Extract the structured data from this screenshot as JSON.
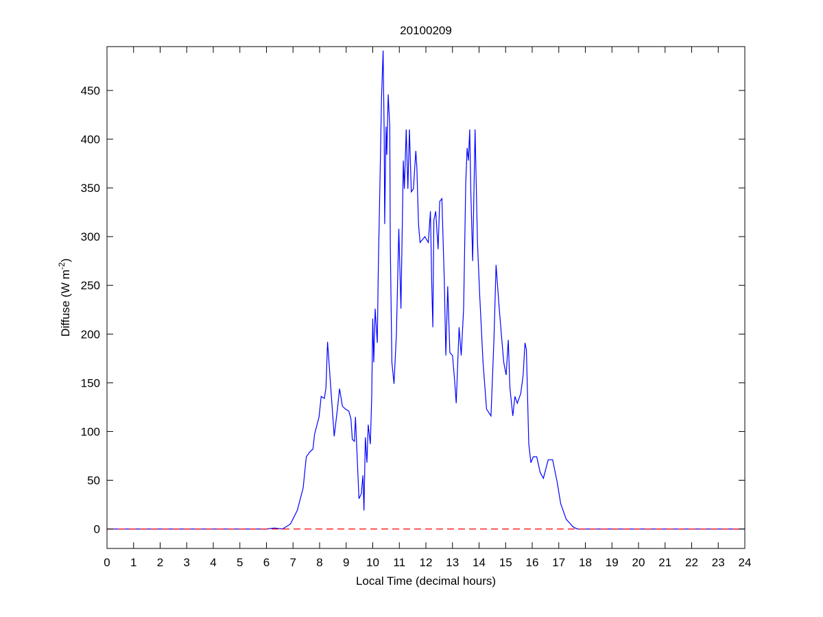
{
  "chart_data": {
    "type": "line",
    "title": "20100209",
    "xlabel": "Local Time (decimal hours)",
    "ylabel": "Diffuse (W m",
    "ylabel_superscript": "-2",
    "ylabel_suffix": ")",
    "xlim": [
      0,
      24
    ],
    "ylim": [
      -20,
      495
    ],
    "xticks": [
      0,
      1,
      2,
      3,
      4,
      5,
      6,
      7,
      8,
      9,
      10,
      11,
      12,
      13,
      14,
      15,
      16,
      17,
      18,
      19,
      20,
      21,
      22,
      23,
      24
    ],
    "yticks": [
      0,
      50,
      100,
      150,
      200,
      250,
      300,
      350,
      400,
      450
    ],
    "grid": false,
    "series": [
      {
        "color": "#0000ff",
        "style": "solid",
        "x": [
          0,
          6.0,
          6.3,
          6.6,
          6.9,
          7.16,
          7.38,
          7.5,
          7.63,
          7.75,
          7.81,
          7.98,
          8.06,
          8.18,
          8.24,
          8.3,
          8.41,
          8.55,
          8.67,
          8.75,
          8.86,
          8.97,
          9.1,
          9.18,
          9.23,
          9.31,
          9.35,
          9.44,
          9.48,
          9.57,
          9.63,
          9.67,
          9.72,
          9.78,
          9.83,
          9.91,
          9.96,
          10.0,
          10.04,
          10.09,
          10.17,
          10.21,
          10.27,
          10.33,
          10.39,
          10.43,
          10.45,
          10.5,
          10.53,
          10.58,
          10.64,
          10.66,
          10.72,
          10.8,
          10.89,
          10.98,
          11.06,
          11.15,
          11.19,
          11.26,
          11.32,
          11.38,
          11.45,
          11.53,
          11.62,
          11.66,
          11.72,
          11.78,
          11.96,
          12.09,
          12.17,
          12.22,
          12.26,
          12.3,
          12.37,
          12.46,
          12.52,
          12.6,
          12.69,
          12.75,
          12.82,
          12.9,
          13.0,
          13.08,
          13.14,
          13.25,
          13.33,
          13.42,
          13.5,
          13.55,
          13.6,
          13.65,
          13.69,
          13.76,
          13.85,
          13.94,
          14.02,
          14.15,
          14.28,
          14.45,
          14.56,
          14.64,
          14.75,
          14.84,
          14.93,
          15.02,
          15.1,
          15.16,
          15.27,
          15.35,
          15.44,
          15.57,
          15.66,
          15.73,
          15.78,
          15.87,
          15.95,
          16.04,
          16.17,
          16.3,
          16.42,
          16.6,
          16.77,
          16.94,
          17.07,
          17.28,
          17.54,
          17.7,
          24
        ],
        "y": [
          0,
          0,
          1,
          0,
          5,
          19,
          42,
          74,
          79,
          82,
          97,
          115,
          136,
          134,
          145,
          192,
          149,
          95,
          123,
          144,
          126,
          123,
          121,
          113,
          92,
          90,
          115,
          57,
          31,
          36,
          55,
          19,
          94,
          68,
          107,
          87,
          136,
          216,
          171,
          226,
          191,
          268,
          355,
          443,
          491,
          404,
          313,
          413,
          384,
          446,
          413,
          291,
          171,
          149,
          200,
          308,
          226,
          378,
          349,
          410,
          349,
          410,
          346,
          349,
          388,
          371,
          313,
          294,
          300,
          294,
          326,
          252,
          207,
          317,
          326,
          287,
          336,
          339,
          258,
          178,
          249,
          181,
          178,
          152,
          129,
          207,
          178,
          226,
          355,
          391,
          378,
          410,
          346,
          275,
          410,
          294,
          242,
          171,
          123,
          116,
          194,
          271,
          229,
          200,
          171,
          158,
          194,
          145,
          116,
          136,
          129,
          139,
          158,
          191,
          184,
          87,
          68,
          74,
          74,
          58,
          52,
          71,
          71,
          48,
          26,
          10,
          2,
          0,
          0
        ]
      },
      {
        "color": "#ff0000",
        "style": "dashed",
        "x": [
          0,
          24
        ],
        "y": [
          0,
          0
        ]
      }
    ]
  }
}
